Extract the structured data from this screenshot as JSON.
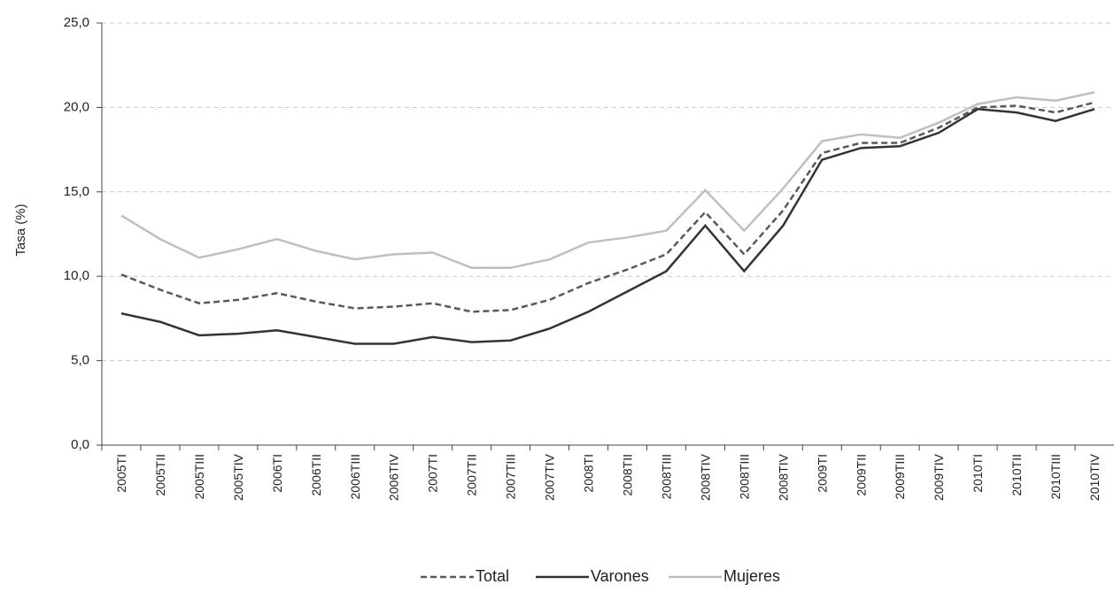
{
  "chart_data": {
    "type": "line",
    "y_label": "Tasa (%)",
    "categories": [
      "2005TI",
      "2005TII",
      "2005TIII",
      "2005TIV",
      "2006TI",
      "2006TII",
      "2006TIII",
      "2006TIV",
      "2007TI",
      "2007TII",
      "2007TIII",
      "2007TIV",
      "2008TI",
      "2008TII",
      "2008TIII",
      "2008TIV",
      "2008TIII",
      "2008TIV",
      "2009TI",
      "2009TII",
      "2009TIII",
      "2009TIV",
      "2010TI",
      "2010TII",
      "2010TIII",
      "2010TIV"
    ],
    "series": [
      {
        "name": "Total",
        "color": "#595959",
        "dashed": true,
        "values": [
          10.1,
          9.2,
          8.4,
          8.6,
          9.0,
          8.5,
          8.1,
          8.2,
          8.4,
          7.9,
          8.0,
          8.6,
          9.6,
          10.4,
          11.3,
          13.8,
          11.3,
          13.9,
          17.3,
          17.9,
          17.9,
          18.8,
          20.0,
          20.1,
          19.7,
          20.3
        ]
      },
      {
        "name": "Varones",
        "color": "#333333",
        "dashed": false,
        "values": [
          7.8,
          7.3,
          6.5,
          6.6,
          6.8,
          6.4,
          6.0,
          6.0,
          6.4,
          6.1,
          6.2,
          6.9,
          7.9,
          9.1,
          10.3,
          13.0,
          10.3,
          13.0,
          16.9,
          17.6,
          17.7,
          18.5,
          19.9,
          19.7,
          19.2,
          19.9
        ]
      },
      {
        "name": "Mujeres",
        "color": "#bfbfbf",
        "dashed": false,
        "values": [
          13.6,
          12.2,
          11.1,
          11.6,
          12.2,
          11.5,
          11.0,
          11.3,
          11.4,
          10.5,
          10.5,
          11.0,
          12.0,
          12.3,
          12.7,
          15.1,
          12.7,
          15.2,
          18.0,
          18.4,
          18.2,
          19.1,
          20.2,
          20.6,
          20.4,
          20.9
        ]
      }
    ],
    "ylim": [
      0,
      25
    ],
    "yticks": [
      {
        "value": 0,
        "label": "0,0"
      },
      {
        "value": 5,
        "label": "5,0"
      },
      {
        "value": 10,
        "label": "10,0"
      },
      {
        "value": 15,
        "label": "15,0"
      },
      {
        "value": 20,
        "label": "20,0"
      },
      {
        "value": 25,
        "label": "25,0"
      }
    ],
    "grid": true,
    "legend": "bottom"
  }
}
